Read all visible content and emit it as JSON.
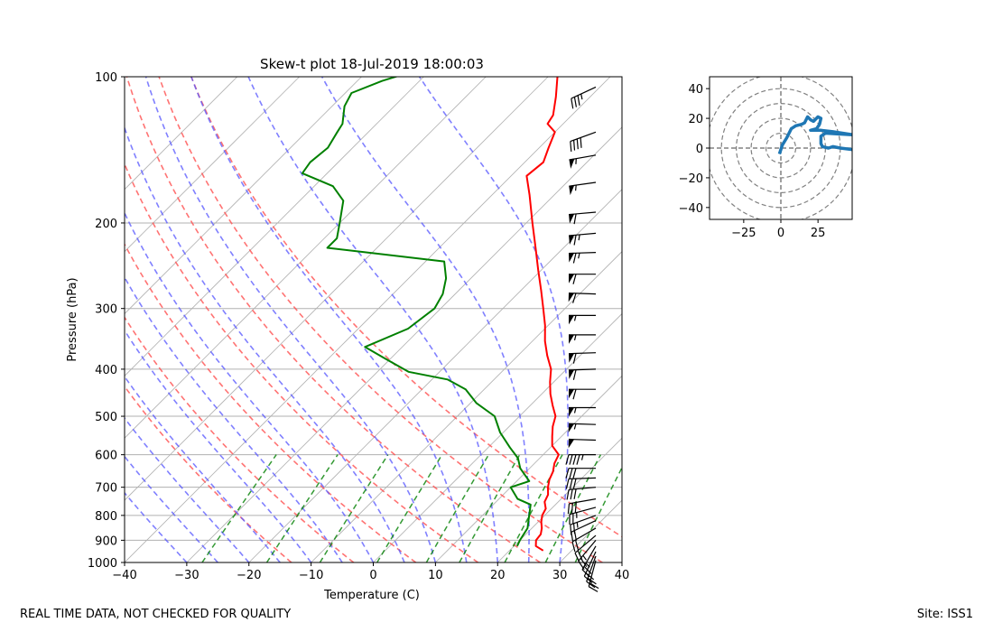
{
  "chart_data": [
    {
      "type": "line",
      "subtype": "skew-t log-p diagram",
      "title": "Skew-t plot 18-Jul-2019 18:00:03",
      "xlabel": "Temperature (C)",
      "ylabel": "Pressure (hPa)",
      "xlim": [
        -40,
        40
      ],
      "ylim": [
        1000,
        100
      ],
      "x_ticks": [
        -40,
        -30,
        -20,
        -10,
        0,
        10,
        20,
        30,
        40
      ],
      "y_ticks": [
        1000,
        900,
        800,
        700,
        600,
        500,
        400,
        300,
        200,
        100
      ],
      "grid": true,
      "series": [
        {
          "name": "Temperature",
          "color": "#ff0000",
          "points": [
            [
              25.4,
              945
            ],
            [
              23.5,
              925
            ],
            [
              22.6,
              900
            ],
            [
              22.4,
              875
            ],
            [
              21.6,
              850
            ],
            [
              20.5,
              825
            ],
            [
              19.6,
              800
            ],
            [
              19.1,
              775
            ],
            [
              17.8,
              750
            ],
            [
              17.2,
              725
            ],
            [
              16.0,
              700
            ],
            [
              15.0,
              675
            ],
            [
              14.3,
              650
            ],
            [
              13.2,
              625
            ],
            [
              12.5,
              600
            ],
            [
              10.0,
              575
            ],
            [
              8.5,
              550
            ],
            [
              7.0,
              525
            ],
            [
              5.8,
              500
            ],
            [
              3.6,
              475
            ],
            [
              1.4,
              450
            ],
            [
              -0.6,
              425
            ],
            [
              -2.5,
              400
            ],
            [
              -5.3,
              375
            ],
            [
              -8.0,
              350
            ],
            [
              -10.5,
              325
            ],
            [
              -13.5,
              300
            ],
            [
              -16.8,
              275
            ],
            [
              -20.5,
              250
            ],
            [
              -24.5,
              225
            ],
            [
              -29.0,
              200
            ],
            [
              -34.0,
              175
            ],
            [
              -37.5,
              160
            ],
            [
              -37.0,
              150
            ],
            [
              -38.5,
              140
            ],
            [
              -40.0,
              130
            ],
            [
              -42.5,
              125
            ],
            [
              -43.0,
              120
            ],
            [
              -45.5,
              110
            ],
            [
              -48.5,
              100
            ]
          ]
        },
        {
          "name": "Dewpoint",
          "color": "#008000",
          "points": [
            [
              20.5,
              925
            ],
            [
              20.0,
              900
            ],
            [
              19.3,
              850
            ],
            [
              17.5,
              800
            ],
            [
              16.0,
              760
            ],
            [
              13.0,
              740
            ],
            [
              10.0,
              700
            ],
            [
              12.0,
              680
            ],
            [
              8.5,
              640
            ],
            [
              6.5,
              610
            ],
            [
              3.5,
              580
            ],
            [
              -0.5,
              540
            ],
            [
              -4.0,
              500
            ],
            [
              -9.0,
              470
            ],
            [
              -13.0,
              440
            ],
            [
              -17.5,
              420
            ],
            [
              -25.0,
              405
            ],
            [
              -31.0,
              380
            ],
            [
              -36.0,
              360
            ],
            [
              -32.0,
              330
            ],
            [
              -31.0,
              300
            ],
            [
              -32.0,
              280
            ],
            [
              -34.0,
              260
            ],
            [
              -37.0,
              240
            ],
            [
              -58.0,
              225
            ],
            [
              -58.0,
              215
            ],
            [
              -60.0,
              200
            ],
            [
              -63.0,
              180
            ],
            [
              -67.0,
              168
            ],
            [
              -74.0,
              158
            ],
            [
              -74.5,
              150
            ],
            [
              -74.0,
              140
            ],
            [
              -75.0,
              130
            ],
            [
              -75.5,
              125
            ],
            [
              -78.0,
              115
            ],
            [
              -79.0,
              108
            ],
            [
              -76.0,
              102
            ],
            [
              -73.0,
              98
            ]
          ]
        }
      ],
      "background_lines": {
        "isotherms": {
          "color": "#b0b0b0",
          "values_c": [
            -100,
            -90,
            -80,
            -70,
            -60,
            -50,
            -40,
            -30,
            -20,
            -10,
            0,
            10,
            20,
            30,
            40,
            50
          ]
        },
        "dry_adiabats": {
          "color": "#ff5050",
          "theta_k": [
            260,
            270,
            280,
            290,
            300,
            310,
            320
          ]
        },
        "moist_adiabats": {
          "color": "#5555ff",
          "t_at_1000_c": [
            -30,
            -25,
            -20,
            -15,
            -10,
            -5,
            0,
            5,
            10,
            15,
            20,
            25,
            30
          ]
        },
        "mixing_ratio_lines": {
          "color": "#008000",
          "w_gkg": [
            0.4,
            1,
            2,
            4,
            7,
            10,
            16,
            24,
            32
          ]
        }
      },
      "wind_barbs": {
        "note": "wind barbs plotted at right edge; speed in knots, direction in degrees",
        "levels": [
          {
            "p": 990,
            "spd": 18,
            "dir": 195
          },
          {
            "p": 970,
            "spd": 20,
            "dir": 200
          },
          {
            "p": 950,
            "spd": 22,
            "dir": 205
          },
          {
            "p": 925,
            "spd": 25,
            "dir": 210
          },
          {
            "p": 900,
            "spd": 25,
            "dir": 220
          },
          {
            "p": 880,
            "spd": 22,
            "dir": 230
          },
          {
            "p": 850,
            "spd": 20,
            "dir": 240
          },
          {
            "p": 820,
            "spd": 22,
            "dir": 245
          },
          {
            "p": 800,
            "spd": 25,
            "dir": 250
          },
          {
            "p": 770,
            "spd": 25,
            "dir": 255
          },
          {
            "p": 740,
            "spd": 28,
            "dir": 260
          },
          {
            "p": 700,
            "spd": 30,
            "dir": 265
          },
          {
            "p": 670,
            "spd": 30,
            "dir": 268
          },
          {
            "p": 640,
            "spd": 32,
            "dir": 270
          },
          {
            "p": 600,
            "spd": 45,
            "dir": 270
          },
          {
            "p": 560,
            "spd": 50,
            "dir": 272
          },
          {
            "p": 520,
            "spd": 55,
            "dir": 272
          },
          {
            "p": 480,
            "spd": 55,
            "dir": 270
          },
          {
            "p": 440,
            "spd": 60,
            "dir": 270
          },
          {
            "p": 400,
            "spd": 60,
            "dir": 268
          },
          {
            "p": 370,
            "spd": 60,
            "dir": 268
          },
          {
            "p": 340,
            "spd": 55,
            "dir": 270
          },
          {
            "p": 310,
            "spd": 55,
            "dir": 270
          },
          {
            "p": 280,
            "spd": 60,
            "dir": 272
          },
          {
            "p": 255,
            "spd": 60,
            "dir": 270
          },
          {
            "p": 230,
            "spd": 65,
            "dir": 268
          },
          {
            "p": 210,
            "spd": 65,
            "dir": 265
          },
          {
            "p": 190,
            "spd": 60,
            "dir": 265
          },
          {
            "p": 165,
            "spd": 55,
            "dir": 262
          },
          {
            "p": 145,
            "spd": 55,
            "dir": 260
          },
          {
            "p": 130,
            "spd": 40,
            "dir": 250
          },
          {
            "p": 105,
            "spd": 35,
            "dir": 245
          }
        ]
      }
    },
    {
      "type": "line",
      "subtype": "hodograph",
      "xlim": [
        -48,
        48
      ],
      "ylim": [
        -48,
        48
      ],
      "x_ticks": [
        -25,
        0,
        25
      ],
      "y_ticks": [
        40,
        20,
        0,
        -20,
        -40
      ],
      "rings": [
        10,
        20,
        30,
        40,
        50
      ],
      "series": [
        {
          "name": "hodograph",
          "color": "#1f77b4",
          "points": [
            [
              -1,
              -4
            ],
            [
              1,
              2
            ],
            [
              4,
              7
            ],
            [
              7,
              13
            ],
            [
              10,
              15
            ],
            [
              14,
              16
            ],
            [
              16,
              17
            ],
            [
              18,
              21
            ],
            [
              20,
              19
            ],
            [
              22,
              18
            ],
            [
              25,
              21
            ],
            [
              27,
              20
            ],
            [
              26,
              16
            ],
            [
              24,
              13
            ],
            [
              20,
              12
            ],
            [
              27,
              12
            ],
            [
              35,
              11
            ],
            [
              48,
              9
            ],
            [
              30,
              10
            ],
            [
              27,
              8
            ],
            [
              27,
              3
            ],
            [
              28,
              1
            ],
            [
              32,
              0
            ],
            [
              35,
              1
            ],
            [
              40,
              0
            ],
            [
              48,
              -1
            ]
          ]
        }
      ]
    }
  ],
  "footer": {
    "left": "REAL TIME DATA, NOT CHECKED FOR QUALITY",
    "right": "Site: ISS1"
  }
}
